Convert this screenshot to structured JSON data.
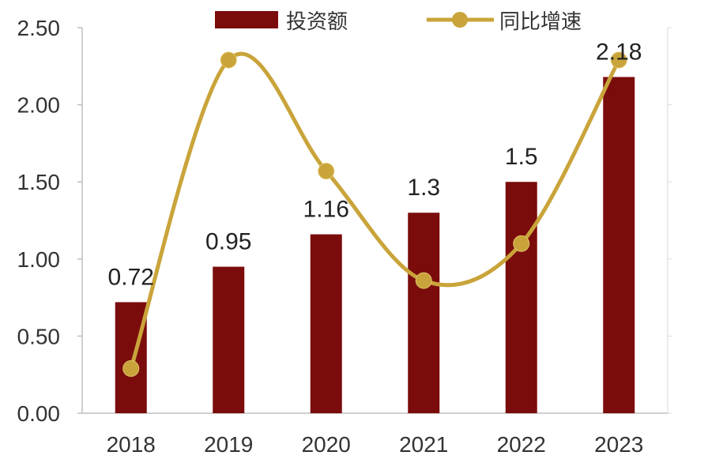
{
  "chart_data": {
    "type": "bar",
    "categories": [
      "2018",
      "2019",
      "2020",
      "2021",
      "2022",
      "2023"
    ],
    "series": [
      {
        "name": "投资额",
        "type": "bar",
        "values": [
          0.72,
          0.95,
          1.16,
          1.3,
          1.5,
          2.18
        ],
        "data_labels": [
          "0.72",
          "0.95",
          "1.16",
          "1.3",
          "1.5",
          "2.18"
        ],
        "color": "#7b0c0c"
      },
      {
        "name": "同比增速",
        "type": "line",
        "values": [
          0.29,
          2.29,
          1.57,
          0.86,
          1.1,
          2.29
        ],
        "color": "#c9a43a",
        "smooth": true,
        "note_unlabeled": true
      }
    ],
    "y_ticks": [
      "0.00",
      "0.50",
      "1.00",
      "1.50",
      "2.00",
      "2.50"
    ],
    "ylim": [
      0,
      2.5
    ],
    "legend_position": "top",
    "grid": false
  }
}
